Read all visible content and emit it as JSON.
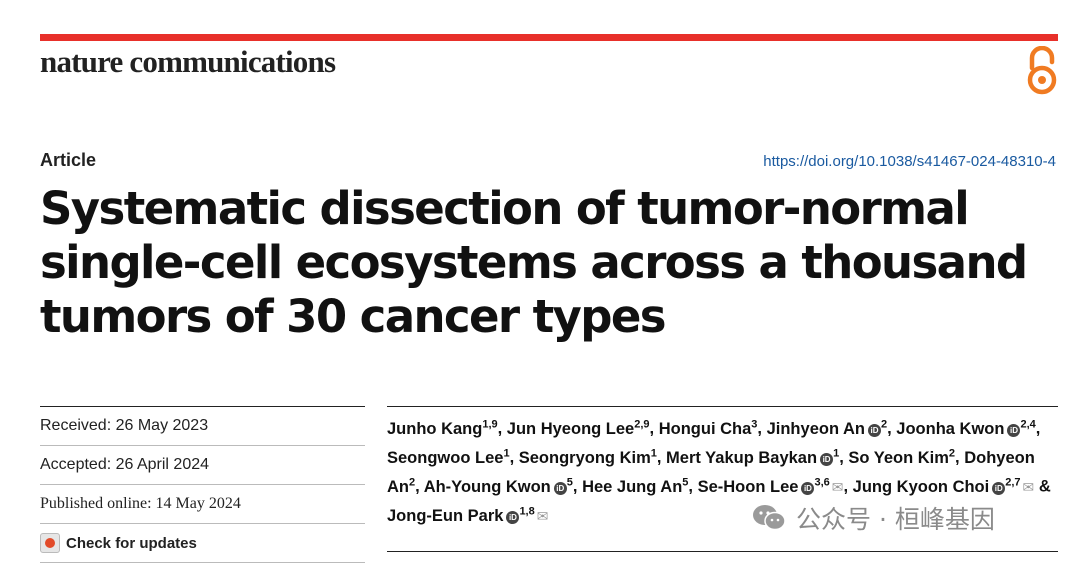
{
  "journal": "nature communications",
  "section": "Article",
  "doi": "https://doi.org/10.1038/s41467-024-48310-4",
  "title": "Systematic dissection of tumor-normal single-cell ecosystems across a thousand tumors of 30 cancer types",
  "dates": {
    "received": "Received: 26 May 2023",
    "accepted": "Accepted: 26 April 2024",
    "published": "Published online: 14 May 2024"
  },
  "check_updates": "Check for updates",
  "authors": [
    {
      "name": "Junho Kang",
      "aff": "1,9",
      "orcid": false,
      "corr": false
    },
    {
      "name": "Jun Hyeong Lee",
      "aff": "2,9",
      "orcid": false,
      "corr": false
    },
    {
      "name": "Hongui Cha",
      "aff": "3",
      "orcid": false,
      "corr": false
    },
    {
      "name": "Jinhyeon An",
      "aff": "2",
      "orcid": true,
      "corr": false
    },
    {
      "name": "Joonha Kwon",
      "aff": "2,4",
      "orcid": true,
      "corr": false
    },
    {
      "name": "Seongwoo Lee",
      "aff": "1",
      "orcid": false,
      "corr": false
    },
    {
      "name": "Seongryong Kim",
      "aff": "1",
      "orcid": false,
      "corr": false
    },
    {
      "name": "Mert Yakup Baykan",
      "aff": "1",
      "orcid": true,
      "corr": false
    },
    {
      "name": "So Yeon Kim",
      "aff": "2",
      "orcid": false,
      "corr": false
    },
    {
      "name": "Dohyeon An",
      "aff": "2",
      "orcid": false,
      "corr": false
    },
    {
      "name": "Ah-Young Kwon",
      "aff": "5",
      "orcid": true,
      "corr": false
    },
    {
      "name": "Hee Jung An",
      "aff": "5",
      "orcid": false,
      "corr": false
    },
    {
      "name": "Se-Hoon Lee",
      "aff": "3,6",
      "orcid": true,
      "corr": true
    },
    {
      "name": "Jung Kyoon Choi",
      "aff": "2,7",
      "orcid": true,
      "corr": true
    },
    {
      "name": "Jong-Eun Park",
      "aff": "1,8",
      "orcid": true,
      "corr": true
    }
  ],
  "watermark": "公众号 · 桓峰基因",
  "colors": {
    "accent": "#e8302a",
    "doi": "#1a5aa0",
    "oa": "#f07b22"
  }
}
